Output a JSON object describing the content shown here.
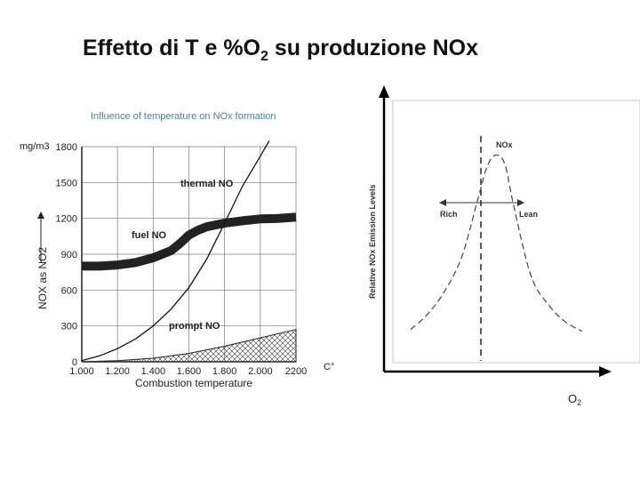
{
  "slide": {
    "title_pre": "Effetto di T e %O",
    "title_sub": "2",
    "title_post": " su produzione NOx"
  },
  "chart_data": [
    {
      "type": "line",
      "title": "Influence of temperature on NOx formation",
      "xlabel": "Combustion temperature",
      "x_unit": "C°",
      "ylabel": "NOX as NO2",
      "y_unit": "mg/m3",
      "x_ticks": [
        "1.000",
        "1.200",
        "1.400",
        "1.600",
        "1.800",
        "2.000",
        "2200"
      ],
      "y_ticks": [
        "0",
        "300",
        "600",
        "900",
        "1200",
        "1500",
        "1800"
      ],
      "xlim": [
        1000,
        2200
      ],
      "ylim": [
        0,
        1800
      ],
      "grid": true,
      "series": [
        {
          "name": "thermal NO",
          "x": [
            1000,
            1100,
            1200,
            1300,
            1400,
            1500,
            1600,
            1700,
            1800,
            1900,
            2000,
            2050
          ],
          "y": [
            10,
            50,
            110,
            190,
            300,
            440,
            620,
            860,
            1160,
            1470,
            1720,
            1850
          ]
        },
        {
          "name": "fuel NO",
          "x": [
            1000,
            1100,
            1200,
            1300,
            1400,
            1500,
            1550,
            1600,
            1650,
            1700,
            1800,
            1900,
            2000,
            2100,
            2200
          ],
          "y": [
            800,
            800,
            810,
            830,
            870,
            930,
            990,
            1060,
            1100,
            1130,
            1160,
            1180,
            1195,
            1200,
            1210
          ]
        },
        {
          "name": "prompt NO",
          "x": [
            1000,
            1200,
            1400,
            1600,
            1800,
            2000,
            2200
          ],
          "y": [
            0,
            10,
            30,
            70,
            130,
            200,
            270
          ]
        }
      ]
    },
    {
      "type": "line",
      "title": "",
      "xlabel": "O2",
      "ylabel": "Relative NOx Emission Levels",
      "annotations": [
        "NOx",
        "Rich",
        "Lean"
      ],
      "series": [
        {
          "name": "NOx",
          "x": [
            0,
            2,
            4,
            6,
            8,
            9,
            10,
            11,
            12,
            14,
            16,
            18,
            20
          ],
          "y": [
            0.08,
            0.16,
            0.28,
            0.46,
            0.78,
            0.93,
            0.98,
            0.93,
            0.72,
            0.36,
            0.21,
            0.12,
            0.07
          ]
        }
      ]
    }
  ]
}
